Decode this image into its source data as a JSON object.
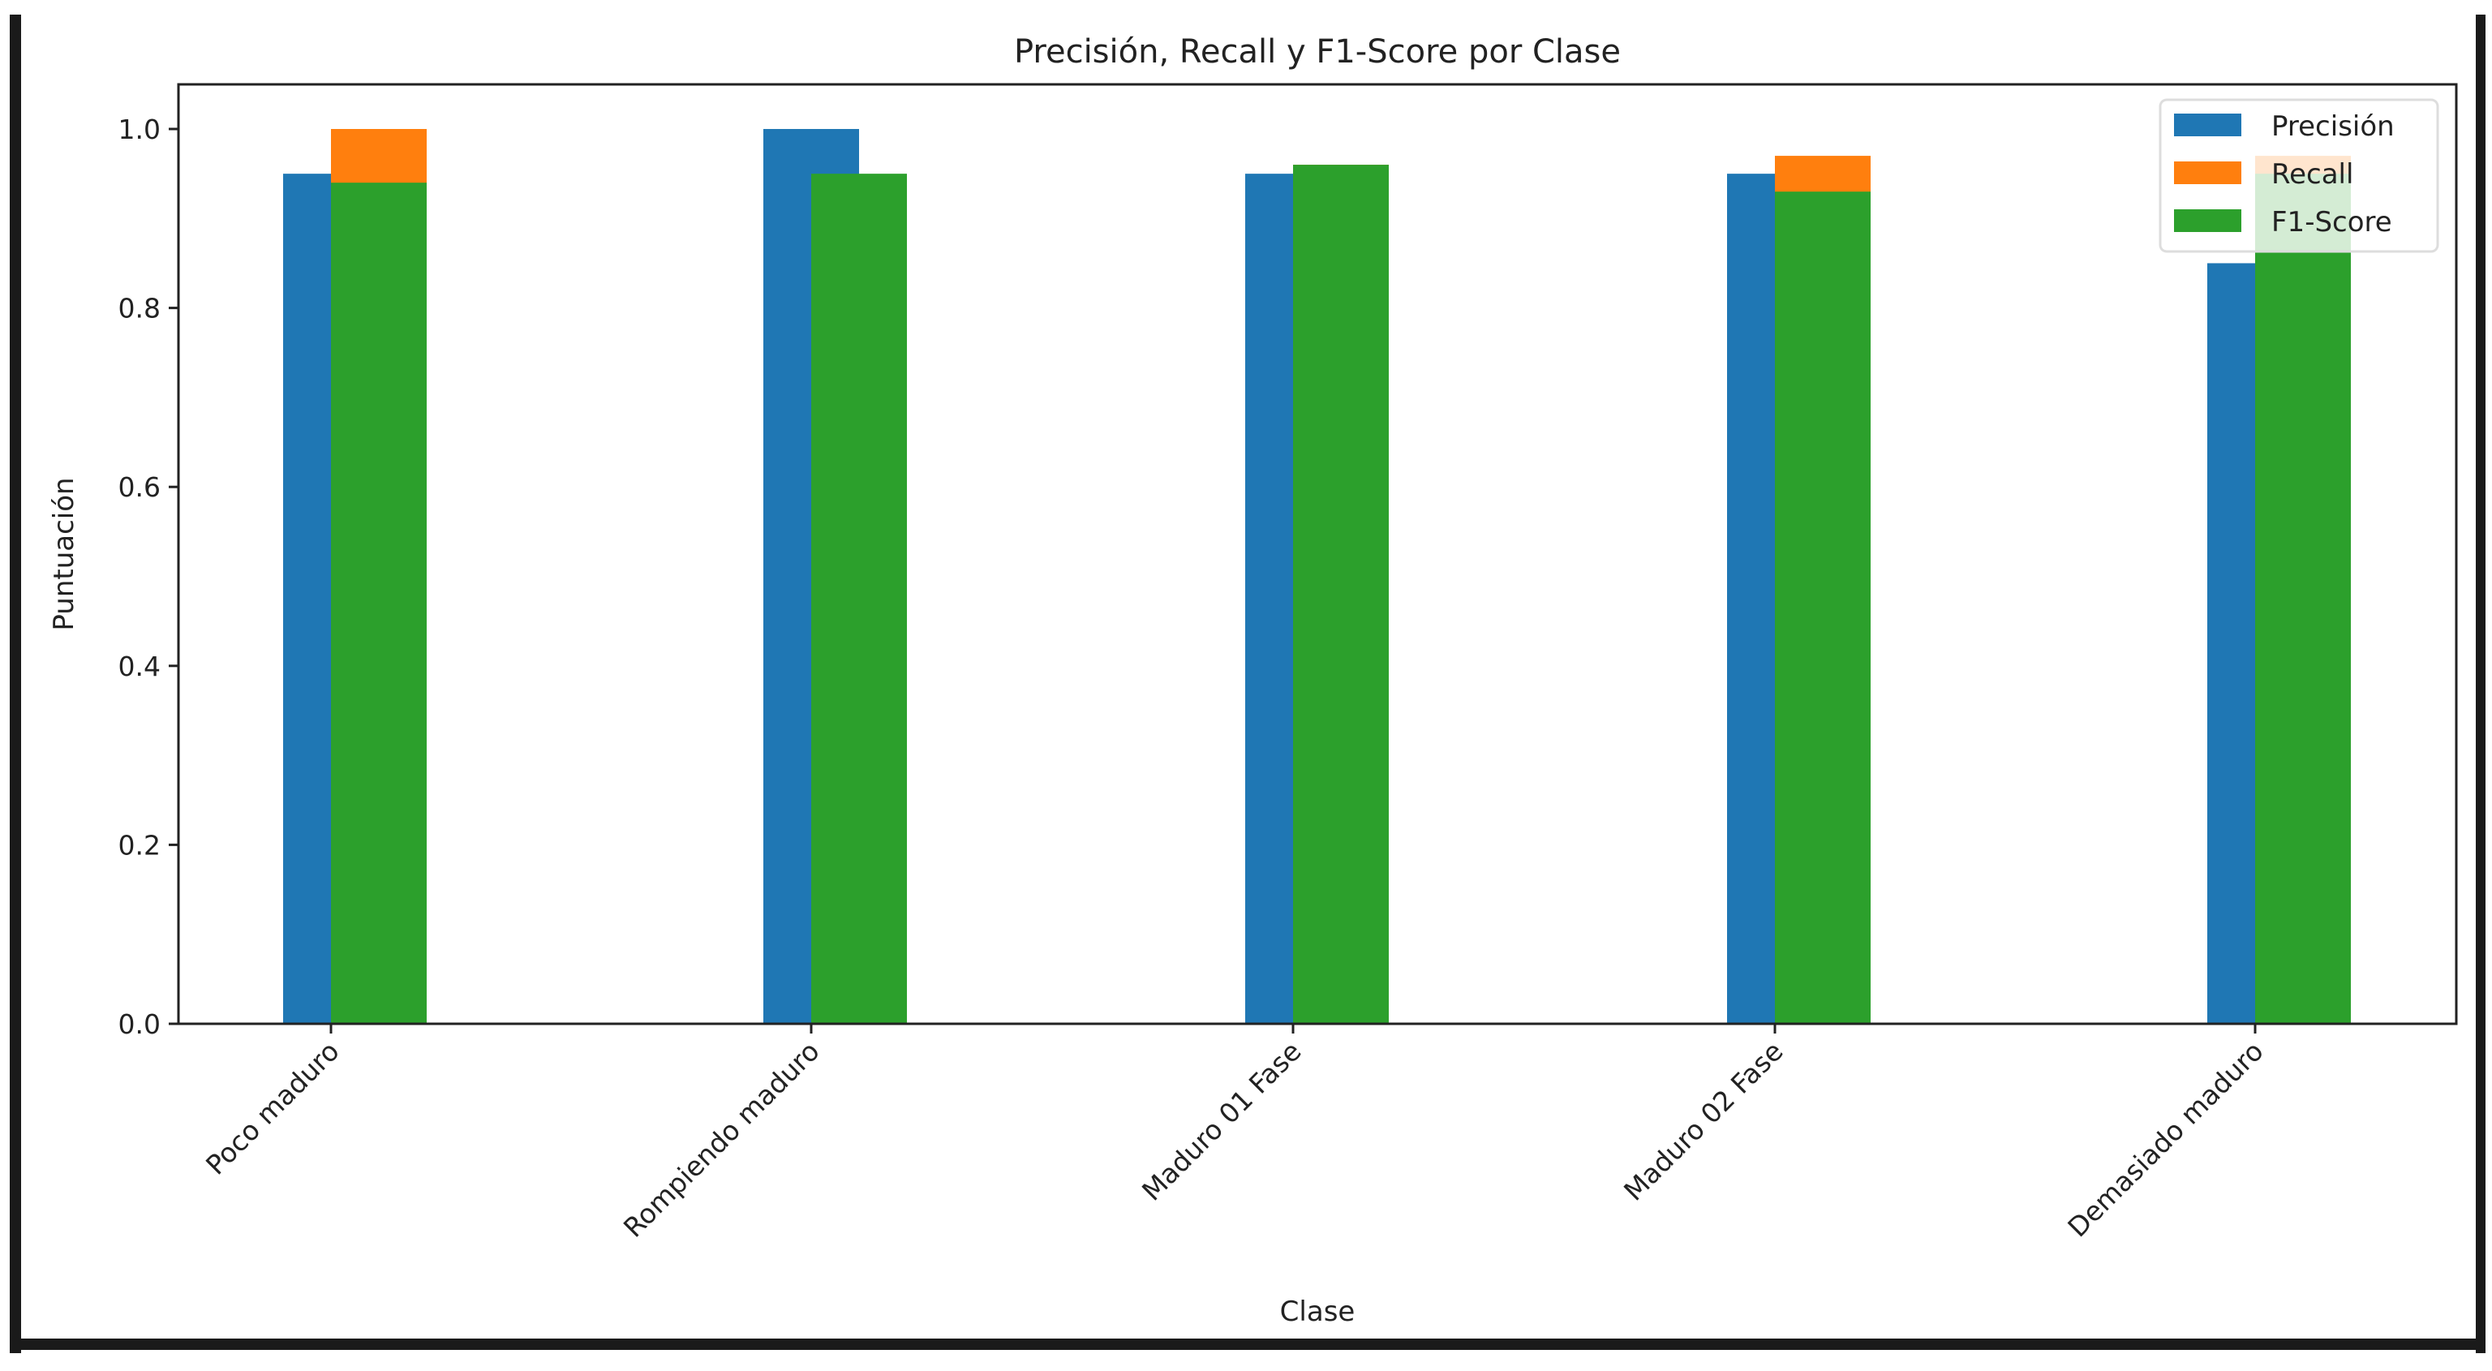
{
  "chart_data": {
    "type": "bar",
    "title": "Precisión, Recall y F1-Score por Clase",
    "xlabel": "Clase",
    "ylabel": "Puntuación",
    "ylim": [
      0,
      1.05
    ],
    "yticks": [
      "0.0",
      "0.2",
      "0.4",
      "0.6",
      "0.8",
      "1.0"
    ],
    "categories": [
      "Poco maduro",
      "Rompiendo maduro",
      "Maduro 01 Fase",
      "Maduro 02 Fase",
      "Demasiado maduro"
    ],
    "series": [
      {
        "name": "Precisión",
        "color": "#1f77b4",
        "values": [
          0.95,
          1.0,
          0.95,
          0.95,
          0.85
        ]
      },
      {
        "name": "Recall",
        "color": "#ff7f0e",
        "values": [
          1.0,
          0.91,
          0.96,
          0.97,
          0.97
        ]
      },
      {
        "name": "F1-Score",
        "color": "#2ca02c",
        "values": [
          0.94,
          0.95,
          0.96,
          0.93,
          0.95
        ]
      }
    ],
    "grid": false,
    "legend": "top-right"
  }
}
